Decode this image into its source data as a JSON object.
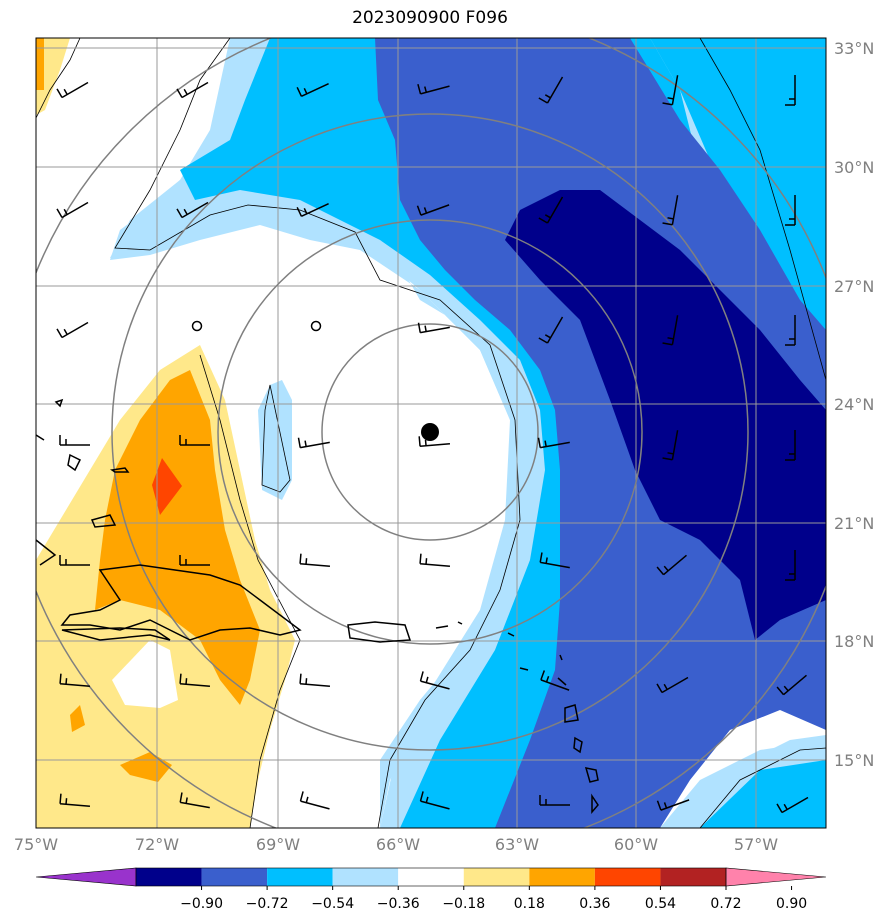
{
  "title": "2023090900 F096",
  "longitude_labels": [
    "75°W",
    "72°W",
    "69°W",
    "66°W",
    "63°W",
    "60°W",
    "57°W"
  ],
  "latitude_labels": [
    "33°N",
    "30°N",
    "27°N",
    "24°N",
    "21°N",
    "18°N",
    "15°N"
  ],
  "colorbar": {
    "tick_labels": [
      "−0.90",
      "−0.72",
      "−0.54",
      "−0.36",
      "−0.18",
      "0.18",
      "0.36",
      "0.54",
      "0.72",
      "0.90"
    ],
    "colors": [
      "#9933cc",
      "#00008b",
      "#3a5fcd",
      "#00bfff",
      "#b0e2ff",
      "#ffffff",
      "#ffe88a",
      "#ffa500",
      "#ff4500",
      "#b22222",
      "#ff82ab"
    ]
  },
  "storm_center": {
    "lon": -65.3,
    "lat": 23.3
  },
  "range_rings": "concentric gray circles around storm center",
  "wind_barbs": "black wind barbs on regular grid",
  "contour_lines": "thin black contour outlines"
}
